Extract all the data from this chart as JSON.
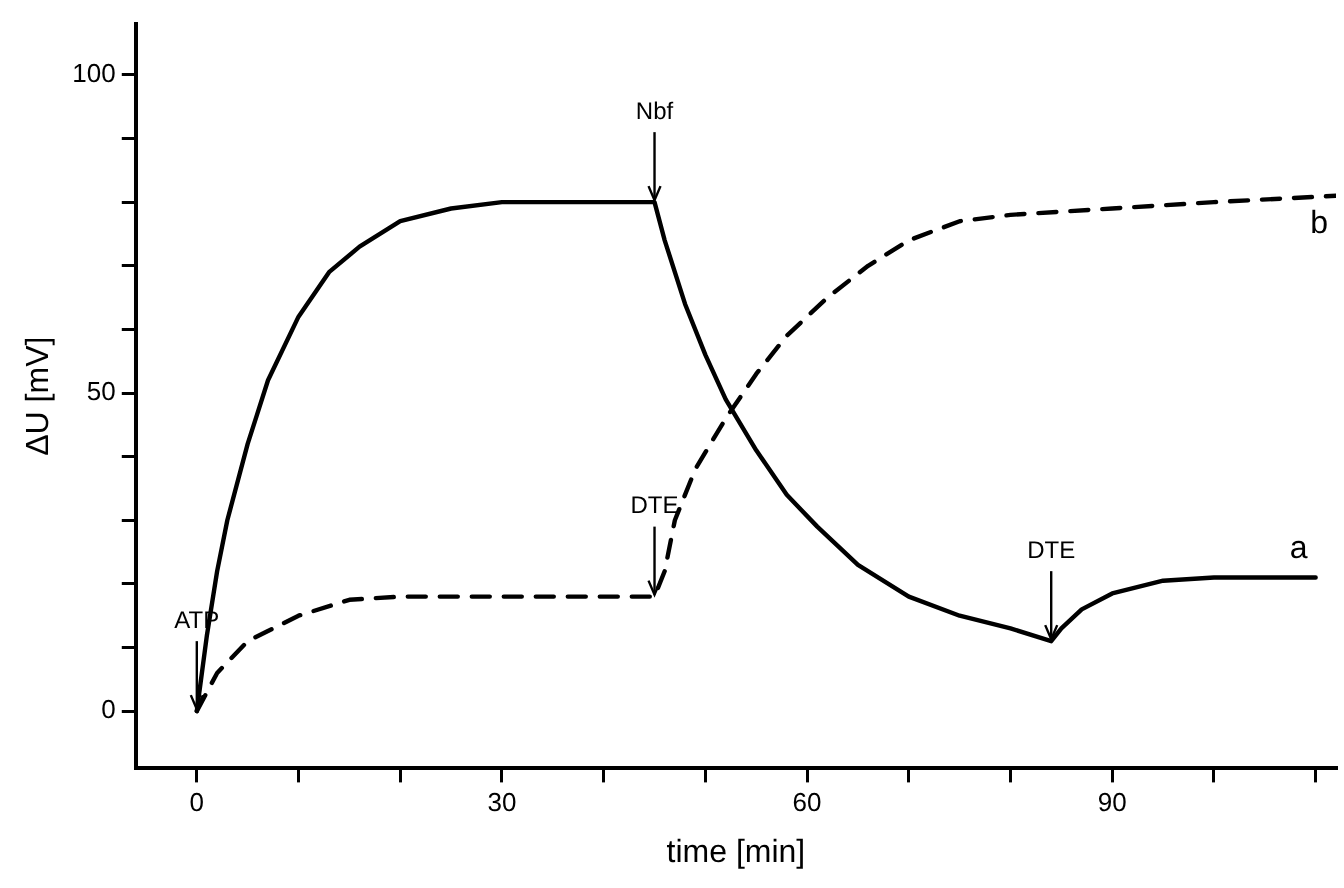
{
  "chart_data": {
    "type": "line",
    "xlabel": "time [min]",
    "ylabel": "ΔU [mV]",
    "xlim": [
      -6,
      112
    ],
    "ylim": [
      -9,
      108
    ],
    "xticks": [
      0,
      {
        "value": 10,
        "label": null
      },
      {
        "value": 20,
        "label": null
      },
      30,
      {
        "value": 40,
        "label": null
      },
      {
        "value": 50,
        "label": null
      },
      60,
      {
        "value": 70,
        "label": null
      },
      {
        "value": 80,
        "label": null
      },
      90,
      {
        "value": 100,
        "label": null
      },
      {
        "value": 110,
        "label": null
      }
    ],
    "yticks": [
      0,
      {
        "value": 10,
        "label": null
      },
      {
        "value": 20,
        "label": null
      },
      {
        "value": 30,
        "label": null
      },
      {
        "value": 40,
        "label": null
      },
      50,
      {
        "value": 60,
        "label": null
      },
      {
        "value": 70,
        "label": null
      },
      {
        "value": 80,
        "label": null
      },
      {
        "value": 90,
        "label": null
      },
      100
    ],
    "grid": false,
    "legend": false,
    "marker": "none",
    "series": [
      {
        "name": "a",
        "color": "#000000",
        "line_style": "solid",
        "x": [
          0,
          1,
          2,
          3,
          5,
          7,
          10,
          13,
          16,
          20,
          25,
          30,
          35,
          40,
          45,
          46,
          48,
          50,
          52,
          55,
          58,
          61,
          65,
          70,
          75,
          80,
          84,
          85,
          87,
          90,
          95,
          100,
          110
        ],
        "values": [
          0,
          12,
          22,
          30,
          42,
          52,
          62,
          69,
          73,
          77,
          79,
          80,
          80,
          80,
          80,
          74,
          64,
          56,
          49,
          41,
          34,
          29,
          23,
          18,
          15,
          13,
          11,
          13,
          16,
          18.5,
          20.5,
          21,
          21
        ]
      },
      {
        "name": "b",
        "color": "#000000",
        "line_style": "dashed",
        "x": [
          0,
          2,
          5,
          10,
          15,
          20,
          30,
          40,
          45,
          46,
          47,
          49,
          52,
          55,
          58,
          62,
          66,
          70,
          75,
          80,
          90,
          100,
          112
        ],
        "values": [
          0,
          6,
          11,
          15,
          17.5,
          18,
          18,
          18,
          18,
          22,
          30,
          38,
          46,
          53,
          59,
          65,
          70,
          74,
          77,
          78,
          79,
          80,
          81
        ]
      }
    ],
    "annotations": [
      {
        "text": "ATP",
        "x": 0,
        "y": 0
      },
      {
        "text": "Nbf",
        "x": 45,
        "y": 80
      },
      {
        "text": "DTE",
        "x": 45,
        "y": 18
      },
      {
        "text": "DTE",
        "x": 84,
        "y": 11
      }
    ]
  }
}
